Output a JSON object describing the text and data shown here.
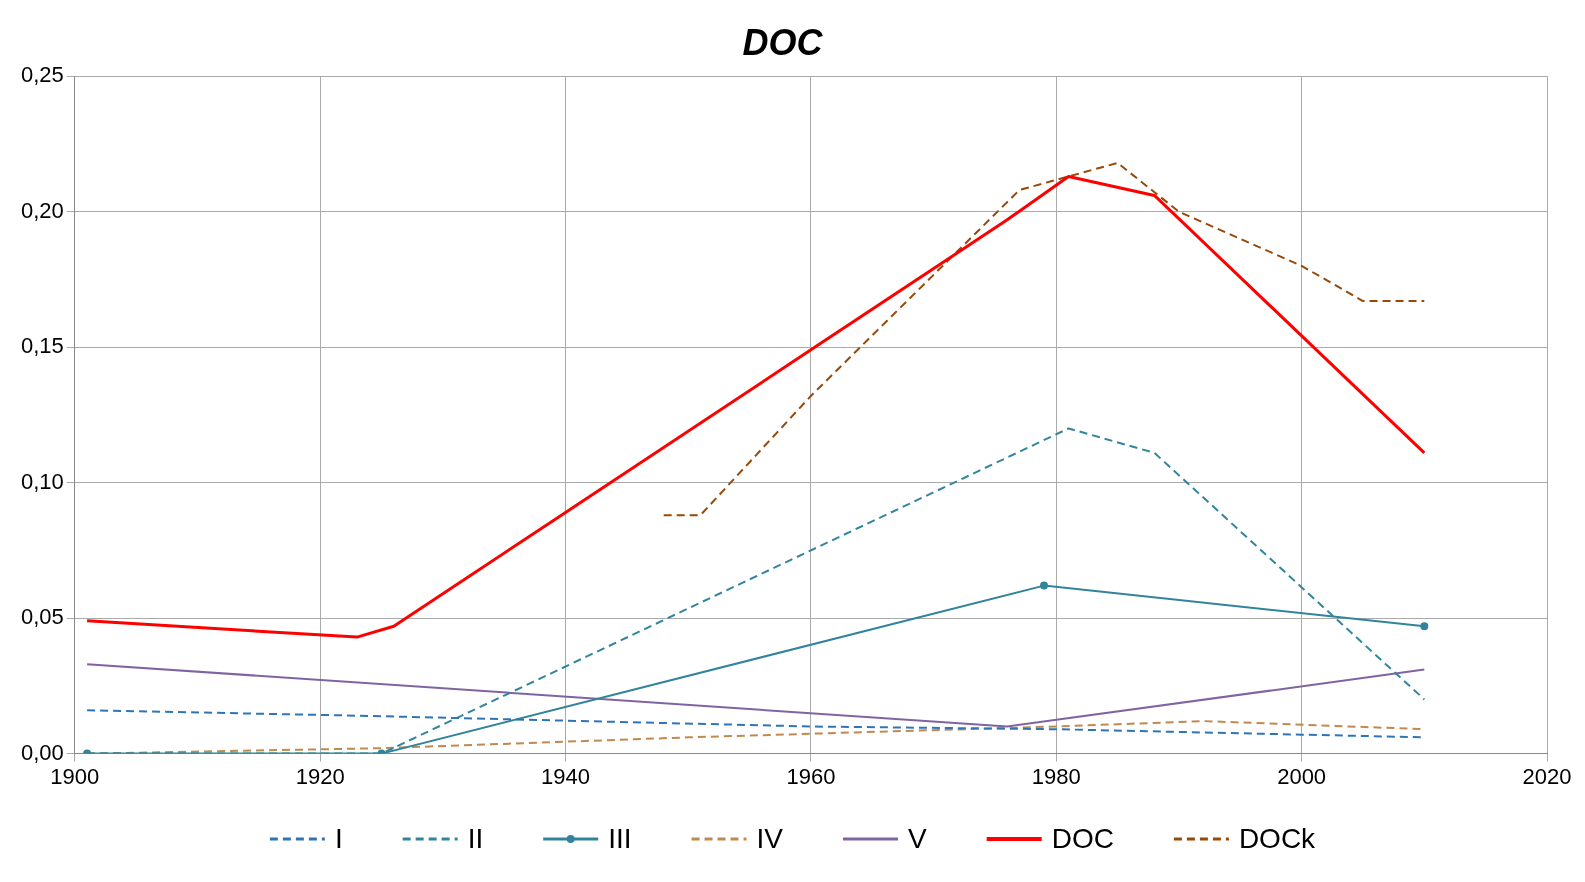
{
  "chart_data": {
    "type": "line",
    "title": "DOC",
    "xlim": [
      1900,
      2020
    ],
    "xticks": [
      1900,
      1920,
      1940,
      1960,
      1980,
      2000,
      2020
    ],
    "ylim": [
      0,
      0.25
    ],
    "yticks": [
      {
        "value": 0,
        "label": "0,00"
      },
      {
        "value": 0.05,
        "label": "0,05"
      },
      {
        "value": 0.1,
        "label": "0,10"
      },
      {
        "value": 0.15,
        "label": "0,15"
      },
      {
        "value": 0.2,
        "label": "0,20"
      },
      {
        "value": 0.25,
        "label": "0,25"
      }
    ],
    "grid": true,
    "legend": "bottom",
    "series": [
      {
        "name": "I",
        "color": "#2e75b6",
        "line_style": "dashed",
        "marker": "none",
        "x": [
          1901,
          1923,
          1960,
          1980,
          2000,
          2010
        ],
        "values": [
          0.016,
          0.014,
          0.01,
          0.009,
          0.007,
          0.006
        ]
      },
      {
        "name": "II",
        "color": "#31859c",
        "line_style": "dashed",
        "marker": "none",
        "x": [
          1901,
          1925,
          1981,
          1988,
          2010
        ],
        "values": [
          0,
          0,
          0.12,
          0.111,
          0.02
        ]
      },
      {
        "name": "III",
        "color": "#31849b",
        "line_style": "solid",
        "marker": "circle",
        "x": [
          1901,
          1925,
          1979,
          2010
        ],
        "values": [
          0,
          0,
          0.062,
          0.047
        ]
      },
      {
        "name": "IV",
        "color": "#c0894f",
        "line_style": "dashed",
        "marker": "none",
        "x": [
          1901,
          1925,
          1950,
          1980,
          1992,
          2010
        ],
        "values": [
          0,
          0.002,
          0.006,
          0.01,
          0.012,
          0.009
        ]
      },
      {
        "name": "V",
        "color": "#8064a2",
        "line_style": "solid",
        "marker": "none",
        "x": [
          1901,
          1976,
          2010
        ],
        "values": [
          0.033,
          0.01,
          0.031
        ]
      },
      {
        "name": "DOC",
        "color": "#ff0000",
        "line_style": "solid",
        "marker": "none",
        "x": [
          1901,
          1923,
          1926,
          1940,
          1960,
          1976,
          1981,
          1988,
          2010
        ],
        "values": [
          0.049,
          0.043,
          0.047,
          0.089,
          0.149,
          0.197,
          0.213,
          0.206,
          0.111
        ]
      },
      {
        "name": "DOCk",
        "color": "#984807",
        "line_style": "dashed",
        "marker": "none",
        "x": [
          1948,
          1951,
          1960,
          1977,
          1985,
          1990,
          2000,
          2005,
          2010
        ],
        "values": [
          0.088,
          0.088,
          0.132,
          0.208,
          0.218,
          0.2,
          0.18,
          0.167,
          0.167
        ]
      }
    ]
  }
}
